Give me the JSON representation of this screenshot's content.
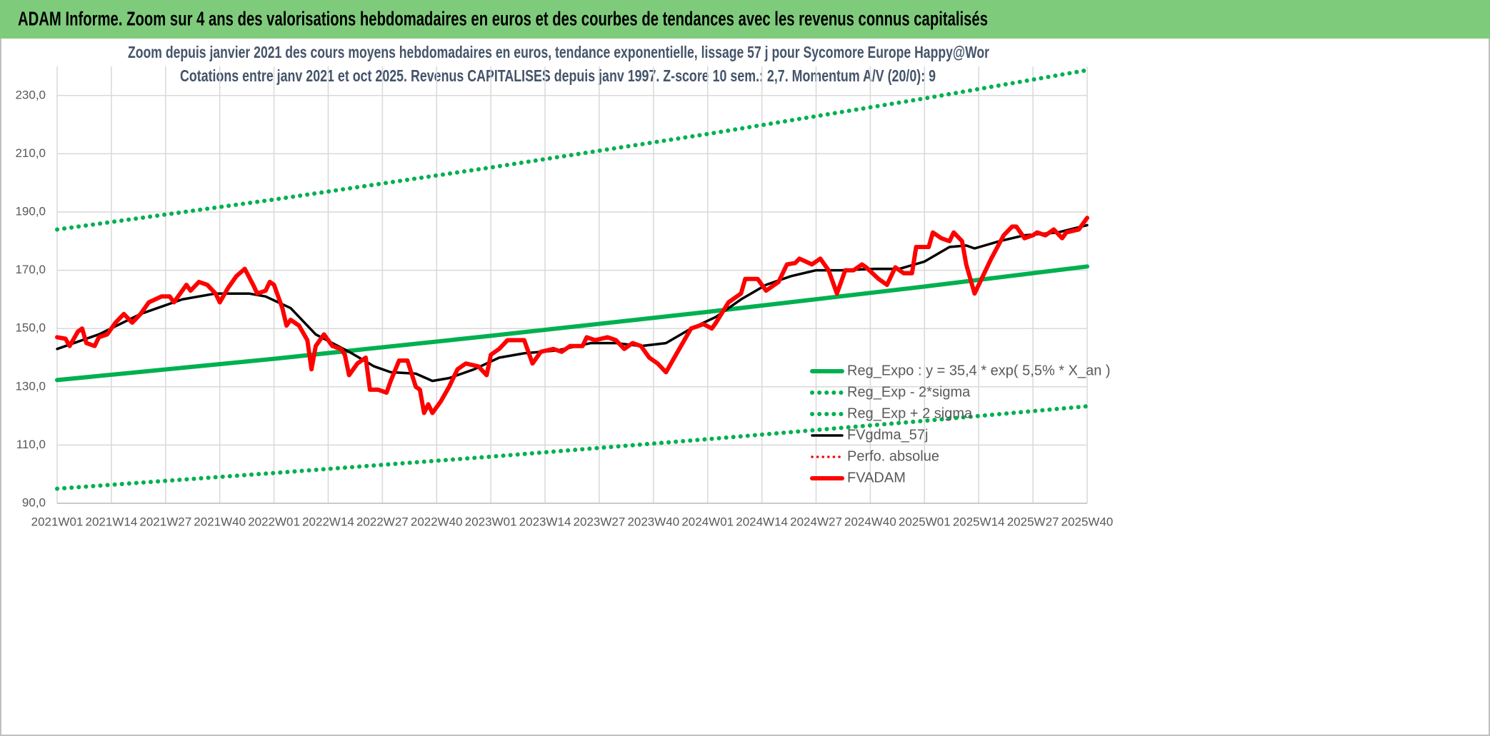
{
  "chart_data": {
    "type": "line",
    "banner": "ADAM Informe. Zoom sur 4 ans des valorisations hebdomadaires en euros et des courbes de tendances avec les revenus connus capitalisés",
    "title": "Zoom depuis janvier 2021 des cours moyens hebdomadaires en euros, tendance exponentielle, lissage 57 j pour Sycomore Europe Happy@Wor",
    "subtitle": "Cotations entre janv 2021 et oct 2025. Revenus CAPITALISES depuis janv 1997. Z-score 10 sem.: 2,7. Momentum A/V (20/0): 9",
    "xlim": [
      0,
      247
    ],
    "xticks": [
      {
        "value": 0,
        "label": "2021W01"
      },
      {
        "value": 13,
        "label": "2021W14"
      },
      {
        "value": 26,
        "label": "2021W27"
      },
      {
        "value": 39,
        "label": "2021W40"
      },
      {
        "value": 52,
        "label": "2022W01"
      },
      {
        "value": 65,
        "label": "2022W14"
      },
      {
        "value": 78,
        "label": "2022W27"
      },
      {
        "value": 91,
        "label": "2022W40"
      },
      {
        "value": 104,
        "label": "2023W01"
      },
      {
        "value": 117,
        "label": "2023W14"
      },
      {
        "value": 130,
        "label": "2023W27"
      },
      {
        "value": 143,
        "label": "2023W40"
      },
      {
        "value": 156,
        "label": "2024W01"
      },
      {
        "value": 169,
        "label": "2024W14"
      },
      {
        "value": 182,
        "label": "2024W27"
      },
      {
        "value": 195,
        "label": "2024W40"
      },
      {
        "value": 208,
        "label": "2025W01"
      },
      {
        "value": 221,
        "label": "2025W14"
      },
      {
        "value": 234,
        "label": "2025W27"
      },
      {
        "value": 247,
        "label": "2025W40"
      }
    ],
    "ylim": [
      90,
      240
    ],
    "yticks": [
      {
        "value": 90,
        "label": "90,0"
      },
      {
        "value": 110,
        "label": "110,0"
      },
      {
        "value": 130,
        "label": "130,0"
      },
      {
        "value": 150,
        "label": "150,0"
      },
      {
        "value": 170,
        "label": "170,0"
      },
      {
        "value": 190,
        "label": "190,0"
      },
      {
        "value": 210,
        "label": "210,0"
      },
      {
        "value": 230,
        "label": "230,0"
      }
    ],
    "grid": true,
    "legend": "right",
    "series": [
      {
        "name": "Reg_Expo : y = 35,4 * exp( 5,5% *  X_an )",
        "color": "#00b050",
        "style": "solid",
        "weight": "bold",
        "x": [
          0,
          52,
          104,
          156,
          208,
          247
        ],
        "values": [
          132.3,
          139.6,
          147.5,
          155.7,
          164.4,
          171.3
        ]
      },
      {
        "name": "Reg_Exp - 2*sigma",
        "color": "#00b050",
        "style": "dotted",
        "weight": "bold",
        "x": [
          0,
          52,
          104,
          156,
          208,
          247
        ],
        "values": [
          95,
          100.4,
          106,
          112,
          118.3,
          123.3
        ]
      },
      {
        "name": "Reg_Exp + 2 sigma",
        "color": "#00b050",
        "style": "dotted",
        "weight": "bold",
        "x": [
          0,
          52,
          104,
          156,
          208,
          247
        ],
        "values": [
          184,
          194.3,
          205.3,
          216.8,
          229,
          238.7
        ]
      },
      {
        "name": "FVgdma_57j",
        "color": "#000000",
        "style": "solid",
        "weight": "normal",
        "x": [
          0,
          10,
          20,
          30,
          38,
          46,
          50,
          56,
          62,
          70,
          76,
          80,
          86,
          90,
          94,
          100,
          106,
          112,
          120,
          128,
          134,
          140,
          146,
          152,
          158,
          164,
          170,
          176,
          182,
          188,
          196,
          202,
          208,
          214,
          218,
          220,
          226,
          232,
          240,
          247
        ],
        "values": [
          143,
          148,
          155,
          160,
          162,
          162,
          161,
          157,
          148,
          142,
          137,
          135,
          134.5,
          132,
          133,
          136,
          140,
          141.5,
          142.5,
          145,
          145,
          144,
          145,
          150,
          154,
          160,
          165,
          168,
          170,
          170,
          170.5,
          170.5,
          173,
          178,
          178.5,
          177.5,
          180,
          182,
          183,
          185.5
        ]
      },
      {
        "name": "Perfo. absolue",
        "color": "#ff0000",
        "style": "dotted",
        "weight": "normal",
        "x": [],
        "values": []
      },
      {
        "name": "FVADAM",
        "color": "#ff0000",
        "style": "solid",
        "weight": "bold",
        "x": [
          0,
          2,
          3,
          5,
          6,
          7,
          9,
          10,
          12,
          14,
          16,
          18,
          20,
          22,
          25,
          27,
          28,
          30,
          31,
          32,
          34,
          36,
          38,
          39,
          41,
          43,
          45,
          47,
          48,
          50,
          51,
          52,
          54,
          55,
          56,
          58,
          60,
          61,
          62,
          64,
          66,
          68,
          69,
          70,
          72,
          74,
          75,
          77,
          79,
          80,
          82,
          84,
          86,
          87,
          88,
          89,
          90,
          92,
          94,
          96,
          98,
          101,
          103,
          104,
          106,
          108,
          110,
          112,
          114,
          116,
          119,
          121,
          123,
          126,
          127,
          129,
          132,
          134,
          136,
          138,
          140,
          142,
          144,
          146,
          148,
          150,
          152,
          155,
          157,
          158,
          161,
          164,
          165,
          168,
          170,
          173,
          175,
          177,
          178,
          181,
          183,
          185,
          187,
          189,
          191,
          193,
          194,
          197,
          199,
          201,
          203,
          205,
          206,
          209,
          210,
          212,
          214,
          215,
          217,
          218,
          220,
          222,
          224,
          227,
          229,
          230,
          232,
          234,
          235,
          237,
          239,
          241,
          242,
          245,
          247
        ],
        "values": [
          147,
          146.5,
          144,
          149,
          150,
          145,
          144,
          147,
          148,
          152,
          155,
          152,
          155,
          159,
          161,
          161,
          159,
          163,
          165,
          163,
          166,
          165,
          162,
          159,
          164,
          168,
          170.5,
          165,
          162,
          163,
          166,
          165,
          157,
          151,
          153,
          151,
          146,
          136,
          144,
          148,
          144,
          143,
          141,
          134,
          138,
          140,
          129,
          129,
          128,
          132,
          139,
          139,
          130,
          129,
          121,
          124,
          121,
          125,
          130,
          136,
          138,
          137,
          134,
          141,
          143,
          146,
          146,
          146,
          138,
          142,
          143,
          142,
          144,
          144,
          147,
          146,
          147,
          146,
          143,
          145,
          144,
          140,
          138,
          135,
          140,
          145,
          150,
          151.5,
          150,
          152,
          159,
          162,
          167,
          167,
          163,
          166,
          172,
          172.5,
          174,
          172,
          174,
          170,
          162,
          170,
          170,
          172,
          171,
          167,
          165,
          171,
          169,
          169,
          178,
          178,
          183,
          181,
          180,
          183,
          180,
          172,
          162,
          168,
          174,
          182,
          185,
          185,
          181,
          182,
          183,
          182,
          184,
          181,
          183,
          184,
          188
        ]
      }
    ]
  }
}
